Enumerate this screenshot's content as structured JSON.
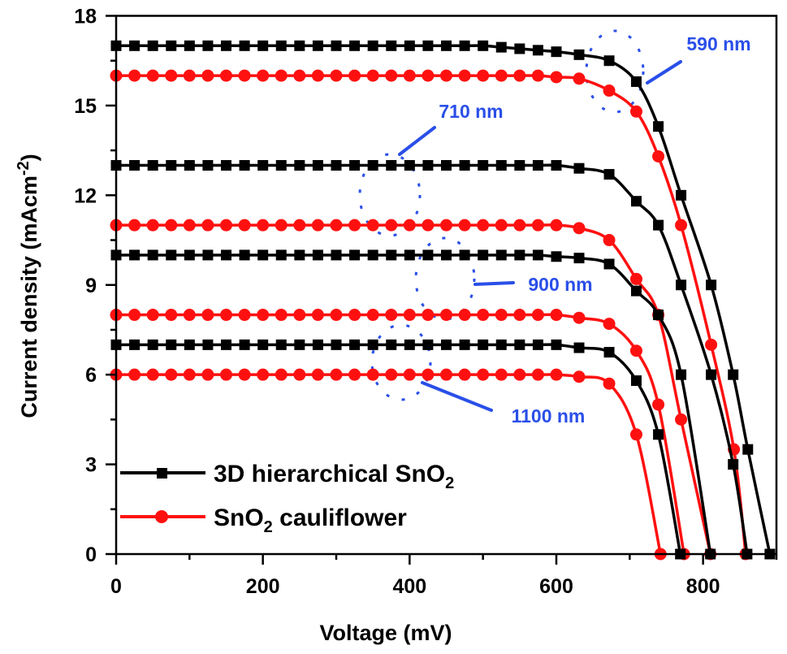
{
  "chart_data": {
    "type": "line",
    "title": "",
    "xlabel": "Voltage (mV)",
    "ylabel": "Current density (mAcm",
    "ylabel_sup": "-2",
    "ylabel_end": ")",
    "xlim": [
      0,
      900
    ],
    "ylim": [
      0,
      18
    ],
    "xticks": [
      0,
      200,
      400,
      600,
      800
    ],
    "xtick_labels": [
      "0",
      "200",
      "400",
      "600",
      "800"
    ],
    "yticks": [
      0,
      3,
      6,
      9,
      12,
      15,
      18
    ],
    "ytick_labels": [
      "0",
      "3",
      "6",
      "9",
      "12",
      "15",
      "18"
    ],
    "grid": false,
    "legend_placement": "bottom-left",
    "legend": [
      {
        "label": "3D hierarchical SnO",
        "sub": "2",
        "suffix": "",
        "color": "#000000",
        "marker": "square"
      },
      {
        "label": "SnO",
        "sub": "2",
        "suffix": " cauliflower",
        "color": "#ff1010",
        "marker": "circle"
      }
    ],
    "series": [
      {
        "group": 0,
        "color": "#000000",
        "marker": "square",
        "points": [
          [
            0,
            17
          ],
          [
            25,
            17
          ],
          [
            50,
            17
          ],
          [
            75,
            17
          ],
          [
            100,
            17
          ],
          [
            125,
            17
          ],
          [
            150,
            17
          ],
          [
            175,
            17
          ],
          [
            200,
            17
          ],
          [
            225,
            17
          ],
          [
            250,
            17
          ],
          [
            275,
            17
          ],
          [
            300,
            17
          ],
          [
            325,
            17
          ],
          [
            350,
            17
          ],
          [
            375,
            17
          ],
          [
            400,
            17
          ],
          [
            425,
            17
          ],
          [
            450,
            17
          ],
          [
            475,
            17
          ],
          [
            500,
            17
          ],
          [
            525,
            16.95
          ],
          [
            550,
            16.9
          ],
          [
            575,
            16.85
          ],
          [
            600,
            16.8
          ],
          [
            631,
            16.7
          ],
          [
            672,
            16.5
          ],
          [
            709,
            15.8
          ],
          [
            739,
            14.3
          ],
          [
            770,
            12.0
          ],
          [
            811,
            9.0
          ],
          [
            841,
            6.0
          ],
          [
            861,
            3.5
          ],
          [
            891,
            0
          ]
        ]
      },
      {
        "group": 1,
        "color": "#ff1010",
        "marker": "circle",
        "points": [
          [
            0,
            16
          ],
          [
            25,
            16
          ],
          [
            50,
            16
          ],
          [
            75,
            16
          ],
          [
            100,
            16
          ],
          [
            125,
            16
          ],
          [
            150,
            16
          ],
          [
            175,
            16
          ],
          [
            200,
            16
          ],
          [
            225,
            16
          ],
          [
            250,
            16
          ],
          [
            275,
            16
          ],
          [
            300,
            16
          ],
          [
            325,
            16
          ],
          [
            350,
            16
          ],
          [
            375,
            16
          ],
          [
            400,
            16
          ],
          [
            425,
            16
          ],
          [
            450,
            16
          ],
          [
            475,
            16
          ],
          [
            500,
            16
          ],
          [
            525,
            16
          ],
          [
            550,
            16
          ],
          [
            575,
            16
          ],
          [
            600,
            15.95
          ],
          [
            631,
            15.9
          ],
          [
            672,
            15.5
          ],
          [
            709,
            14.8
          ],
          [
            739,
            13.3
          ],
          [
            770,
            11.0
          ],
          [
            811,
            7.0
          ],
          [
            842,
            3.5
          ],
          [
            858,
            0
          ]
        ]
      },
      {
        "group": 0,
        "color": "#000000",
        "marker": "square",
        "points": [
          [
            0,
            13
          ],
          [
            25,
            13
          ],
          [
            50,
            13
          ],
          [
            75,
            13
          ],
          [
            100,
            13
          ],
          [
            125,
            13
          ],
          [
            150,
            13
          ],
          [
            175,
            13
          ],
          [
            200,
            13
          ],
          [
            225,
            13
          ],
          [
            250,
            13
          ],
          [
            275,
            13
          ],
          [
            300,
            13
          ],
          [
            325,
            13
          ],
          [
            350,
            13
          ],
          [
            375,
            13
          ],
          [
            400,
            13
          ],
          [
            425,
            13
          ],
          [
            450,
            13
          ],
          [
            475,
            13
          ],
          [
            500,
            13
          ],
          [
            525,
            13
          ],
          [
            550,
            13
          ],
          [
            575,
            13
          ],
          [
            600,
            13
          ],
          [
            631,
            12.9
          ],
          [
            672,
            12.7
          ],
          [
            709,
            11.8
          ],
          [
            739,
            11.0
          ],
          [
            770,
            9.0
          ],
          [
            811,
            6.0
          ],
          [
            841,
            3.0
          ],
          [
            860,
            0
          ]
        ]
      },
      {
        "group": 1,
        "color": "#ff1010",
        "marker": "circle",
        "points": [
          [
            0,
            11
          ],
          [
            25,
            11
          ],
          [
            50,
            11
          ],
          [
            75,
            11
          ],
          [
            100,
            11
          ],
          [
            125,
            11
          ],
          [
            150,
            11
          ],
          [
            175,
            11
          ],
          [
            200,
            11
          ],
          [
            225,
            11
          ],
          [
            250,
            11
          ],
          [
            275,
            11
          ],
          [
            300,
            11
          ],
          [
            325,
            11
          ],
          [
            350,
            11
          ],
          [
            375,
            11
          ],
          [
            400,
            11
          ],
          [
            425,
            11
          ],
          [
            450,
            11
          ],
          [
            475,
            11
          ],
          [
            500,
            11
          ],
          [
            525,
            11
          ],
          [
            550,
            11
          ],
          [
            575,
            11
          ],
          [
            600,
            11
          ],
          [
            631,
            10.9
          ],
          [
            672,
            10.5
          ],
          [
            709,
            9.2
          ],
          [
            739,
            8.0
          ],
          [
            770,
            4.5
          ],
          [
            810,
            0
          ]
        ]
      },
      {
        "group": 0,
        "color": "#000000",
        "marker": "square",
        "points": [
          [
            0,
            10
          ],
          [
            25,
            10
          ],
          [
            50,
            10
          ],
          [
            75,
            10
          ],
          [
            100,
            10
          ],
          [
            125,
            10
          ],
          [
            150,
            10
          ],
          [
            175,
            10
          ],
          [
            200,
            10
          ],
          [
            225,
            10
          ],
          [
            250,
            10
          ],
          [
            275,
            10
          ],
          [
            300,
            10
          ],
          [
            325,
            10
          ],
          [
            350,
            10
          ],
          [
            375,
            10
          ],
          [
            400,
            10
          ],
          [
            425,
            10
          ],
          [
            450,
            10
          ],
          [
            475,
            10
          ],
          [
            500,
            10
          ],
          [
            525,
            10
          ],
          [
            550,
            10
          ],
          [
            575,
            10
          ],
          [
            600,
            9.95
          ],
          [
            631,
            9.9
          ],
          [
            672,
            9.7
          ],
          [
            709,
            8.8
          ],
          [
            739,
            8.0
          ],
          [
            770,
            6.0
          ],
          [
            810,
            0
          ]
        ]
      },
      {
        "group": 1,
        "color": "#ff1010",
        "marker": "circle",
        "points": [
          [
            0,
            8
          ],
          [
            25,
            8
          ],
          [
            50,
            8
          ],
          [
            75,
            8
          ],
          [
            100,
            8
          ],
          [
            125,
            8
          ],
          [
            150,
            8
          ],
          [
            175,
            8
          ],
          [
            200,
            8
          ],
          [
            225,
            8
          ],
          [
            250,
            8
          ],
          [
            275,
            8
          ],
          [
            300,
            8
          ],
          [
            325,
            8
          ],
          [
            350,
            8
          ],
          [
            375,
            8
          ],
          [
            400,
            8
          ],
          [
            425,
            8
          ],
          [
            450,
            8
          ],
          [
            475,
            8
          ],
          [
            500,
            8
          ],
          [
            525,
            8
          ],
          [
            550,
            8
          ],
          [
            575,
            8
          ],
          [
            600,
            8
          ],
          [
            631,
            7.9
          ],
          [
            672,
            7.7
          ],
          [
            709,
            6.8
          ],
          [
            739,
            5.0
          ],
          [
            774,
            0
          ]
        ]
      },
      {
        "group": 0,
        "color": "#000000",
        "marker": "square",
        "points": [
          [
            0,
            7
          ],
          [
            25,
            7
          ],
          [
            50,
            7
          ],
          [
            75,
            7
          ],
          [
            100,
            7
          ],
          [
            125,
            7
          ],
          [
            150,
            7
          ],
          [
            175,
            7
          ],
          [
            200,
            7
          ],
          [
            225,
            7
          ],
          [
            250,
            7
          ],
          [
            275,
            7
          ],
          [
            300,
            7
          ],
          [
            325,
            7
          ],
          [
            350,
            7
          ],
          [
            375,
            7
          ],
          [
            400,
            7
          ],
          [
            425,
            7
          ],
          [
            450,
            7
          ],
          [
            475,
            7
          ],
          [
            500,
            7
          ],
          [
            525,
            7
          ],
          [
            550,
            7
          ],
          [
            575,
            7
          ],
          [
            600,
            7
          ],
          [
            631,
            6.9
          ],
          [
            672,
            6.75
          ],
          [
            709,
            5.8
          ],
          [
            739,
            4.0
          ],
          [
            769,
            0
          ]
        ]
      },
      {
        "group": 1,
        "color": "#ff1010",
        "marker": "circle",
        "points": [
          [
            0,
            6
          ],
          [
            25,
            6
          ],
          [
            50,
            6
          ],
          [
            75,
            6
          ],
          [
            100,
            6
          ],
          [
            125,
            6
          ],
          [
            150,
            6
          ],
          [
            175,
            6
          ],
          [
            200,
            6
          ],
          [
            225,
            6
          ],
          [
            250,
            6
          ],
          [
            275,
            6
          ],
          [
            300,
            6
          ],
          [
            325,
            6
          ],
          [
            350,
            6
          ],
          [
            375,
            6
          ],
          [
            400,
            6
          ],
          [
            425,
            6
          ],
          [
            450,
            6
          ],
          [
            475,
            6
          ],
          [
            500,
            6
          ],
          [
            525,
            6
          ],
          [
            550,
            6
          ],
          [
            575,
            6
          ],
          [
            600,
            6
          ],
          [
            631,
            5.93
          ],
          [
            672,
            5.7
          ],
          [
            709,
            4.0
          ],
          [
            742,
            0
          ]
        ]
      }
    ],
    "annotations": [
      {
        "text": "590 nm",
        "color": "#2a4fe8"
      },
      {
        "text": "710 nm",
        "color": "#2a4fe8"
      },
      {
        "text": "900 nm",
        "color": "#2a4fe8"
      },
      {
        "text": "1100 nm",
        "color": "#2a4fe8"
      }
    ]
  }
}
